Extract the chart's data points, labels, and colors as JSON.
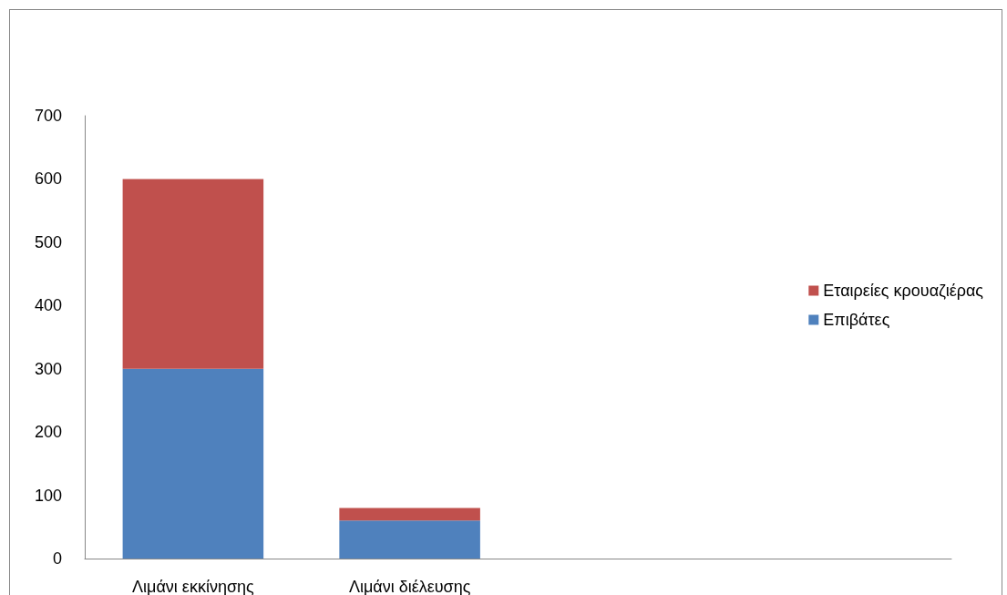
{
  "chart_data": {
    "type": "bar",
    "stacked": true,
    "categories": [
      "Λιμάνι εκκίνησης",
      "Λιμάνι διέλευσης",
      null,
      null
    ],
    "series": [
      {
        "name": "Επιβάτες",
        "color": "#4f81bd",
        "values": [
          300,
          60,
          null,
          null
        ]
      },
      {
        "name": "Εταιρείες κρουαζιέρας",
        "color": "#c0504d",
        "values": [
          300,
          20,
          null,
          null
        ]
      }
    ],
    "ylim": [
      0,
      700
    ],
    "yticks": [
      0,
      100,
      200,
      300,
      400,
      500,
      600,
      700
    ],
    "grid": false,
    "legend": "right"
  }
}
